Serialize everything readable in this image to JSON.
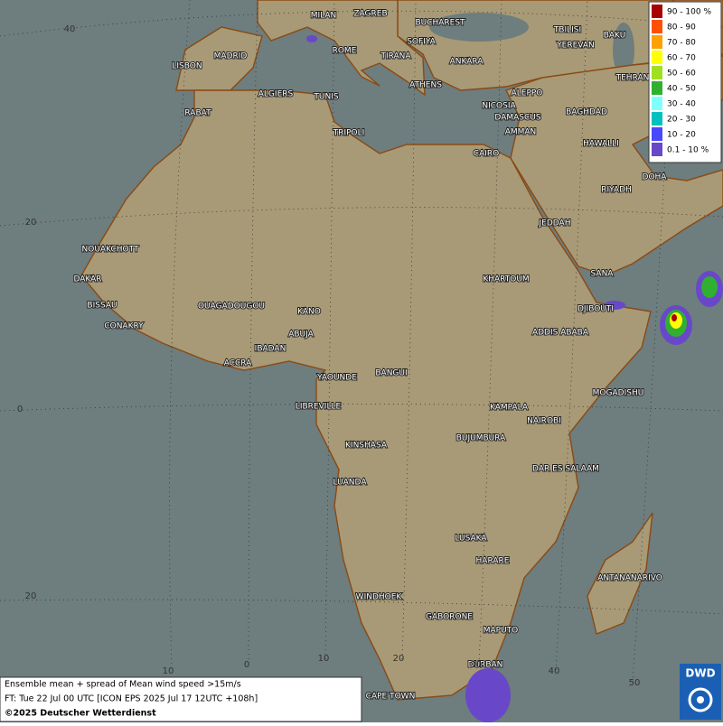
{
  "map": {
    "cities": [
      "MILAN",
      "ZAGREB",
      "BUCHAREST",
      "TBILISI",
      "BAKU",
      "MADRID",
      "ROME",
      "SOFIYA",
      "TIRANA",
      "YEREVAN",
      "ANKARA",
      "LISBON",
      "ATHENS",
      "TEHRAN",
      "ALGIERS",
      "TUNIS",
      "ALEPPO",
      "RABAT",
      "NICOSIA",
      "BAGHDAD",
      "DAMASCUS",
      "TRIPOLI",
      "AMMAN",
      "HAWALLI",
      "CAIRO",
      "DOHA",
      "RIYADH",
      "JEDDAH",
      "NOUAKCHOTT",
      "SANA",
      "KHARTOUM",
      "DAKAR",
      "BISSAU",
      "OUAGADOUGOU",
      "KANO",
      "DJIBOUTI",
      "CONAKRY",
      "ABUJA",
      "ADDIS ABABA",
      "IBADAN",
      "ACCRA",
      "YAOUNDE",
      "BANGUI",
      "MOGADISHU",
      "LIBREVILLE",
      "KAMPALA",
      "NAIROBI",
      "KINSHASA",
      "BUJUMBURA",
      "DAR ES SALAAM",
      "LUANDA",
      "LUSAKA",
      "HARARE",
      "ANTANANARIVO",
      "WINDHOEK",
      "GABORONE",
      "MAPUTO",
      "DURBAN",
      "CAPE TOWN"
    ],
    "latitude_labels": [
      "40",
      "20",
      "0",
      "20"
    ],
    "longitude_labels": [
      "10",
      "0",
      "10",
      "20",
      "30",
      "40",
      "50"
    ]
  },
  "legend": {
    "items": [
      {
        "label": "90 - 100 %",
        "color": "#a80000"
      },
      {
        "label": "80 - 90",
        "color": "#ff5000"
      },
      {
        "label": "70 - 80",
        "color": "#ffa000"
      },
      {
        "label": "60 - 70",
        "color": "#ffff00"
      },
      {
        "label": "50 - 60",
        "color": "#a0e020"
      },
      {
        "label": "40 - 50",
        "color": "#30b030"
      },
      {
        "label": "30 - 40",
        "color": "#80ffff"
      },
      {
        "label": "20 - 30",
        "color": "#00c0c0"
      },
      {
        "label": "10 - 20",
        "color": "#4848ff"
      },
      {
        "label": "0.1 - 10 %",
        "color": "#6848c8"
      }
    ]
  },
  "footer": {
    "lines": [
      "Ensemble mean + spread of Mean wind speed >15m/s",
      "FT: Tue 22 Jul 00 UTC [ICON EPS 2025 Jul 17 12UTC +108h]",
      "©2025 Deutscher Wetterdienst"
    ]
  },
  "logo": "DWD"
}
